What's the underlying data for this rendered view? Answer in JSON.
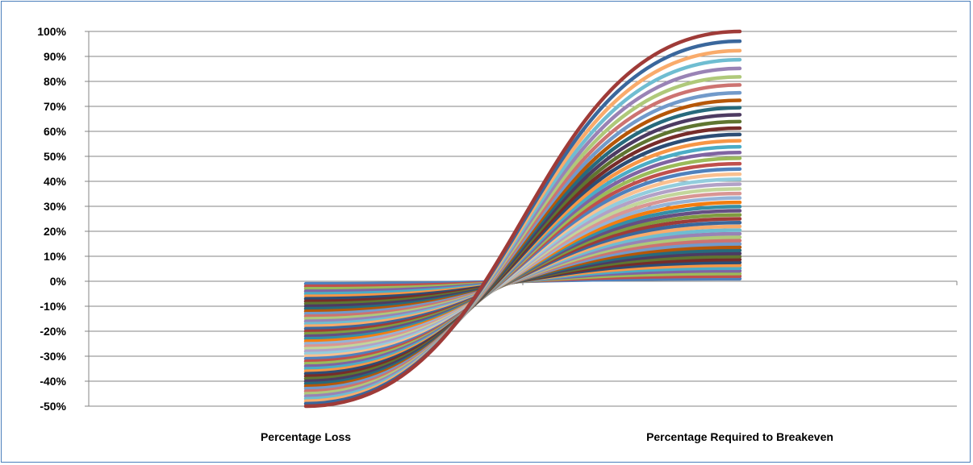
{
  "chart_data": {
    "type": "line",
    "categories": [
      "Percentage Loss",
      "Percentage Required to Breakeven"
    ],
    "ylim": [
      -0.5,
      1.0
    ],
    "y_ticks": [
      1.0,
      0.9,
      0.8,
      0.7,
      0.6,
      0.5,
      0.4,
      0.3,
      0.2,
      0.1,
      0.0,
      -0.1,
      -0.2,
      -0.3,
      -0.4,
      -0.5
    ],
    "y_tick_labels": [
      "100%",
      "90%",
      "80%",
      "70%",
      "60%",
      "50%",
      "40%",
      "30%",
      "20%",
      "10%",
      "0%",
      "-10%",
      "-20%",
      "-30%",
      "-40%",
      "-50%"
    ],
    "grid": true,
    "legend": "none",
    "series_loss_values": [
      -0.01,
      -0.02,
      -0.03,
      -0.04,
      -0.05,
      -0.06,
      -0.07,
      -0.08,
      -0.09,
      -0.1,
      -0.11,
      -0.12,
      -0.13,
      -0.14,
      -0.15,
      -0.16,
      -0.17,
      -0.18,
      -0.19,
      -0.2,
      -0.21,
      -0.22,
      -0.23,
      -0.24,
      -0.25,
      -0.26,
      -0.27,
      -0.28,
      -0.29,
      -0.3,
      -0.31,
      -0.32,
      -0.33,
      -0.34,
      -0.35,
      -0.36,
      -0.37,
      -0.38,
      -0.39,
      -0.4,
      -0.41,
      -0.42,
      -0.43,
      -0.44,
      -0.45,
      -0.46,
      -0.47,
      -0.48,
      -0.49,
      -0.5
    ],
    "series_breakeven_values": [
      0.0101,
      0.0204,
      0.0309,
      0.0417,
      0.0526,
      0.0638,
      0.0753,
      0.087,
      0.0989,
      0.1111,
      0.1236,
      0.1364,
      0.1494,
      0.1628,
      0.1765,
      0.1905,
      0.2048,
      0.2195,
      0.2346,
      0.25,
      0.2658,
      0.2821,
      0.2987,
      0.3158,
      0.3333,
      0.3514,
      0.3699,
      0.3889,
      0.4085,
      0.4286,
      0.4493,
      0.4706,
      0.4925,
      0.5152,
      0.5385,
      0.5625,
      0.5873,
      0.6129,
      0.6393,
      0.6667,
      0.6949,
      0.7241,
      0.7544,
      0.7857,
      0.8182,
      0.8519,
      0.8868,
      0.9231,
      0.9608,
      1.0
    ],
    "palette": [
      "#4f81bd",
      "#c0504d",
      "#9bbb59",
      "#8064a2",
      "#4bacc6",
      "#f79646",
      "#2c4d75",
      "#772c2a",
      "#5f7530",
      "#4d3b62",
      "#276a7c",
      "#b65708",
      "#729aca",
      "#cd7371",
      "#afc97a",
      "#9983b5",
      "#6fbdd1",
      "#f9ab6b",
      "#3a679c",
      "#9f3b38",
      "#7f9c40",
      "#664f83",
      "#358ea6",
      "#f37d0f",
      "#95b3d7",
      "#d99694",
      "#c3d69b",
      "#b2a1c7",
      "#93cddd",
      "#fac090"
    ]
  }
}
